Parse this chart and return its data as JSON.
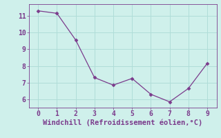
{
  "x": [
    0,
    1,
    2,
    3,
    4,
    5,
    6,
    7,
    8,
    9
  ],
  "y": [
    11.3,
    11.15,
    9.55,
    7.3,
    6.85,
    7.25,
    6.3,
    5.85,
    6.65,
    8.15
  ],
  "line_color": "#7b3b8c",
  "marker": "D",
  "marker_size": 2.5,
  "background_color": "#cff0eb",
  "grid_color": "#b0ddd8",
  "xlabel": "Windchill (Refroidissement éolien,°C)",
  "xlabel_color": "#7b3b8c",
  "xlabel_fontsize": 7.5,
  "tick_color": "#7b3b8c",
  "tick_fontsize": 7,
  "xlim": [
    -0.5,
    9.5
  ],
  "ylim": [
    5.5,
    11.7
  ],
  "yticks": [
    6,
    7,
    8,
    9,
    10,
    11
  ],
  "xticks": [
    0,
    1,
    2,
    3,
    4,
    5,
    6,
    7,
    8,
    9
  ]
}
